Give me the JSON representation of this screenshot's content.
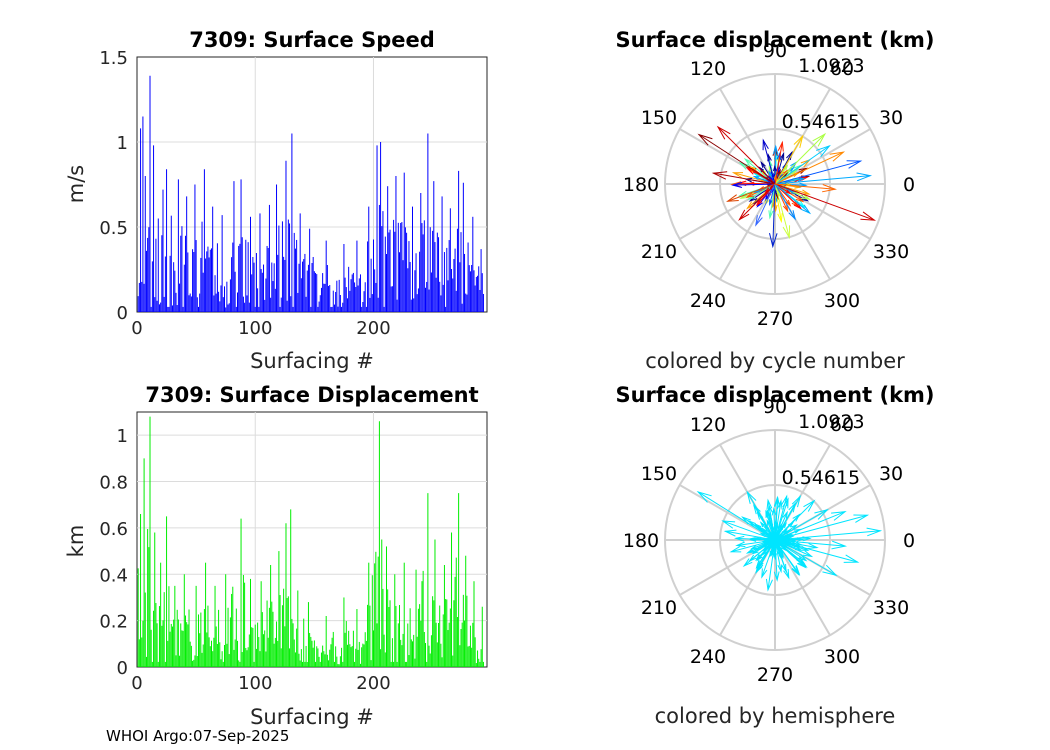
{
  "footer": "WHOI Argo:07-Sep-2025",
  "chart_data": [
    {
      "type": "bar",
      "title": "7309: Surface Speed",
      "xlabel": "Surfacing #",
      "ylabel": "m/s",
      "xlim": [
        0,
        296
      ],
      "ylim": [
        0,
        1.5
      ],
      "xticks": [
        "0",
        "100",
        "200"
      ],
      "yticks": [
        "0",
        "0.5",
        "1",
        "1.5"
      ],
      "grid": true,
      "color": "#0000ff",
      "peaks": [
        {
          "x": 3,
          "value": 1.08
        },
        {
          "x": 5,
          "value": 1.15
        },
        {
          "x": 7,
          "value": 0.8
        },
        {
          "x": 11,
          "value": 1.39
        },
        {
          "x": 14,
          "value": 0.98
        },
        {
          "x": 18,
          "value": 0.55
        },
        {
          "x": 22,
          "value": 0.72
        },
        {
          "x": 25,
          "value": 0.84
        },
        {
          "x": 35,
          "value": 0.78
        },
        {
          "x": 42,
          "value": 0.68
        },
        {
          "x": 49,
          "value": 0.75
        },
        {
          "x": 57,
          "value": 0.84
        },
        {
          "x": 64,
          "value": 0.62
        },
        {
          "x": 72,
          "value": 0.57
        },
        {
          "x": 82,
          "value": 0.77
        },
        {
          "x": 88,
          "value": 0.78
        },
        {
          "x": 96,
          "value": 0.56
        },
        {
          "x": 104,
          "value": 0.58
        },
        {
          "x": 112,
          "value": 0.63
        },
        {
          "x": 118,
          "value": 0.75
        },
        {
          "x": 126,
          "value": 0.89
        },
        {
          "x": 131,
          "value": 1.05
        },
        {
          "x": 138,
          "value": 0.58
        },
        {
          "x": 146,
          "value": 0.49
        },
        {
          "x": 160,
          "value": 0.42
        },
        {
          "x": 175,
          "value": 0.4
        },
        {
          "x": 186,
          "value": 0.42
        },
        {
          "x": 196,
          "value": 0.62
        },
        {
          "x": 203,
          "value": 0.98
        },
        {
          "x": 206,
          "value": 1.0
        },
        {
          "x": 212,
          "value": 0.74
        },
        {
          "x": 219,
          "value": 0.8
        },
        {
          "x": 226,
          "value": 0.82
        },
        {
          "x": 233,
          "value": 0.62
        },
        {
          "x": 240,
          "value": 0.7
        },
        {
          "x": 246,
          "value": 1.05
        },
        {
          "x": 251,
          "value": 0.77
        },
        {
          "x": 258,
          "value": 0.68
        },
        {
          "x": 265,
          "value": 0.61
        },
        {
          "x": 272,
          "value": 0.83
        },
        {
          "x": 276,
          "value": 0.76
        },
        {
          "x": 284,
          "value": 0.56
        },
        {
          "x": 291,
          "value": 0.37
        }
      ]
    },
    {
      "type": "bar",
      "title": "7309: Surface Displacement",
      "xlabel": "Surfacing #",
      "ylabel": "km",
      "xlim": [
        0,
        296
      ],
      "ylim": [
        0,
        1.1
      ],
      "xticks": [
        "0",
        "100",
        "200"
      ],
      "yticks": [
        "0",
        "0.2",
        "0.4",
        "0.6",
        "0.8",
        "1"
      ],
      "grid": true,
      "color": "#00ee00",
      "peaks": [
        {
          "x": 3,
          "value": 0.66
        },
        {
          "x": 6,
          "value": 0.9
        },
        {
          "x": 11,
          "value": 1.08
        },
        {
          "x": 15,
          "value": 0.58
        },
        {
          "x": 20,
          "value": 0.45
        },
        {
          "x": 25,
          "value": 0.65
        },
        {
          "x": 32,
          "value": 0.35
        },
        {
          "x": 40,
          "value": 0.4
        },
        {
          "x": 50,
          "value": 0.35
        },
        {
          "x": 58,
          "value": 0.45
        },
        {
          "x": 66,
          "value": 0.35
        },
        {
          "x": 75,
          "value": 0.4
        },
        {
          "x": 88,
          "value": 0.64
        },
        {
          "x": 96,
          "value": 0.38
        },
        {
          "x": 105,
          "value": 0.37
        },
        {
          "x": 113,
          "value": 0.44
        },
        {
          "x": 120,
          "value": 0.5
        },
        {
          "x": 126,
          "value": 0.62
        },
        {
          "x": 130,
          "value": 0.68
        },
        {
          "x": 136,
          "value": 0.33
        },
        {
          "x": 145,
          "value": 0.28
        },
        {
          "x": 160,
          "value": 0.22
        },
        {
          "x": 175,
          "value": 0.3
        },
        {
          "x": 186,
          "value": 0.25
        },
        {
          "x": 196,
          "value": 0.45
        },
        {
          "x": 205,
          "value": 1.06
        },
        {
          "x": 211,
          "value": 0.52
        },
        {
          "x": 218,
          "value": 0.4
        },
        {
          "x": 226,
          "value": 0.45
        },
        {
          "x": 236,
          "value": 0.42
        },
        {
          "x": 246,
          "value": 0.75
        },
        {
          "x": 252,
          "value": 0.55
        },
        {
          "x": 260,
          "value": 0.44
        },
        {
          "x": 266,
          "value": 0.58
        },
        {
          "x": 272,
          "value": 0.75
        },
        {
          "x": 278,
          "value": 0.48
        },
        {
          "x": 285,
          "value": 0.37
        },
        {
          "x": 292,
          "value": 0.26
        }
      ]
    },
    {
      "type": "polar-compass",
      "title": "Surface displacement (km)",
      "caption": "colored by cycle number",
      "r_max": 1.0923,
      "r_ticks": [
        "0.54615",
        "1.0923"
      ],
      "angle_ticks": [
        "0",
        "30",
        "60",
        "90",
        "120",
        "150",
        "180",
        "210",
        "240",
        "270",
        "300",
        "330"
      ],
      "coloring": "cycle-number",
      "long_vectors": [
        {
          "angle": 5,
          "length": 0.95,
          "color": "#00aaff"
        },
        {
          "angle": 15,
          "length": 0.88,
          "color": "#0055ff"
        },
        {
          "angle": 25,
          "length": 0.75,
          "color": "#ff8800"
        },
        {
          "angle": 35,
          "length": 0.66,
          "color": "#00ccff"
        },
        {
          "angle": 45,
          "length": 0.7,
          "color": "#aaff44"
        },
        {
          "angle": 60,
          "length": 0.55,
          "color": "#ffcc00"
        },
        {
          "angle": 80,
          "length": 0.42,
          "color": "#ff2200"
        },
        {
          "angle": 105,
          "length": 0.45,
          "color": "#0000cc"
        },
        {
          "angle": 135,
          "length": 0.8,
          "color": "#cc0000"
        },
        {
          "angle": 147,
          "length": 0.9,
          "color": "#880000"
        },
        {
          "angle": 170,
          "length": 0.62,
          "color": "#aa0000"
        },
        {
          "angle": 200,
          "length": 0.5,
          "color": "#dd4400"
        },
        {
          "angle": 225,
          "length": 0.5,
          "color": "#cc0000"
        },
        {
          "angle": 245,
          "length": 0.45,
          "color": "#3366ff"
        },
        {
          "angle": 268,
          "length": 0.62,
          "color": "#0022cc"
        },
        {
          "angle": 285,
          "length": 0.55,
          "color": "#ccff44"
        },
        {
          "angle": 300,
          "length": 0.4,
          "color": "#0088ff"
        },
        {
          "angle": 320,
          "length": 0.45,
          "color": "#00aaff"
        },
        {
          "angle": 340,
          "length": 1.05,
          "color": "#cc0000"
        },
        {
          "angle": 355,
          "length": 0.6,
          "color": "#ff6600"
        }
      ]
    },
    {
      "type": "polar-compass",
      "title": "Surface displacement (km)",
      "caption": "colored by hemisphere",
      "r_max": 1.0923,
      "r_ticks": [
        "0.54615",
        "1.0923"
      ],
      "angle_ticks": [
        "0",
        "30",
        "60",
        "90",
        "120",
        "150",
        "180",
        "210",
        "240",
        "270",
        "300",
        "330"
      ],
      "coloring": "hemisphere",
      "color": "#00e5ff",
      "long_vectors": [
        {
          "angle": 5,
          "length": 1.05
        },
        {
          "angle": 15,
          "length": 0.95
        },
        {
          "angle": 22,
          "length": 0.75
        },
        {
          "angle": 30,
          "length": 0.6
        },
        {
          "angle": 45,
          "length": 0.55
        },
        {
          "angle": 60,
          "length": 0.5
        },
        {
          "angle": 75,
          "length": 0.45
        },
        {
          "angle": 100,
          "length": 0.4
        },
        {
          "angle": 120,
          "length": 0.55
        },
        {
          "angle": 148,
          "length": 0.9
        },
        {
          "angle": 160,
          "length": 0.55
        },
        {
          "angle": 170,
          "length": 0.5
        },
        {
          "angle": 195,
          "length": 0.45
        },
        {
          "angle": 220,
          "length": 0.4
        },
        {
          "angle": 240,
          "length": 0.35
        },
        {
          "angle": 262,
          "length": 0.5
        },
        {
          "angle": 290,
          "length": 0.4
        },
        {
          "angle": 330,
          "length": 0.7
        },
        {
          "angle": 345,
          "length": 0.85
        },
        {
          "angle": 355,
          "length": 0.7
        }
      ]
    }
  ]
}
